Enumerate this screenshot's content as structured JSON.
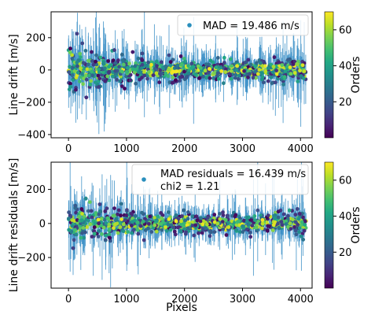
{
  "chart_data": [
    {
      "type": "scatter",
      "ylabel": "Line drift [m/s]",
      "xlabel": "",
      "xlim": [
        -300,
        4200
      ],
      "ylim": [
        -420,
        360
      ],
      "xticks": [
        0,
        1000,
        2000,
        3000,
        4000
      ],
      "yticks": [
        -400,
        -200,
        0,
        200
      ],
      "xtick_labels": [
        "0",
        "1000",
        "2000",
        "3000",
        "4000"
      ],
      "ytick_labels": [
        "−400",
        "−200",
        "0",
        "200"
      ],
      "legend": "MAD = 19.486 m/s",
      "legend_position": "top-right",
      "error_bars": true,
      "error_bar_color": "#3b8fc7",
      "x_range": [
        0,
        4096
      ],
      "scatter_center": 0,
      "typical_spread": 19.486,
      "max_error_bar": 330,
      "colorbar": {
        "label": "Orders",
        "ticks": [
          20,
          40,
          60
        ],
        "range": [
          0,
          70
        ],
        "colormap": "viridis"
      }
    },
    {
      "type": "scatter",
      "ylabel": "Line drift residuals [m/s]",
      "xlabel": "Pixels",
      "xlim": [
        -300,
        4200
      ],
      "ylim": [
        -380,
        360
      ],
      "xticks": [
        0,
        1000,
        2000,
        3000,
        4000
      ],
      "yticks": [
        -200,
        0,
        200
      ],
      "xtick_labels": [
        "0",
        "1000",
        "2000",
        "3000",
        "4000"
      ],
      "ytick_labels": [
        "−200",
        "0",
        "200"
      ],
      "legend": [
        "MAD residuals = 16.439 m/s",
        "chi2 = 1.21"
      ],
      "legend_position": "top-right",
      "error_bars": true,
      "error_bar_color": "#3b8fc7",
      "x_range": [
        0,
        4096
      ],
      "scatter_center": 0,
      "typical_spread": 16.439,
      "max_error_bar": 330,
      "colorbar": {
        "label": "Orders",
        "ticks": [
          20,
          40,
          60
        ],
        "range": [
          0,
          70
        ],
        "colormap": "viridis"
      }
    }
  ]
}
